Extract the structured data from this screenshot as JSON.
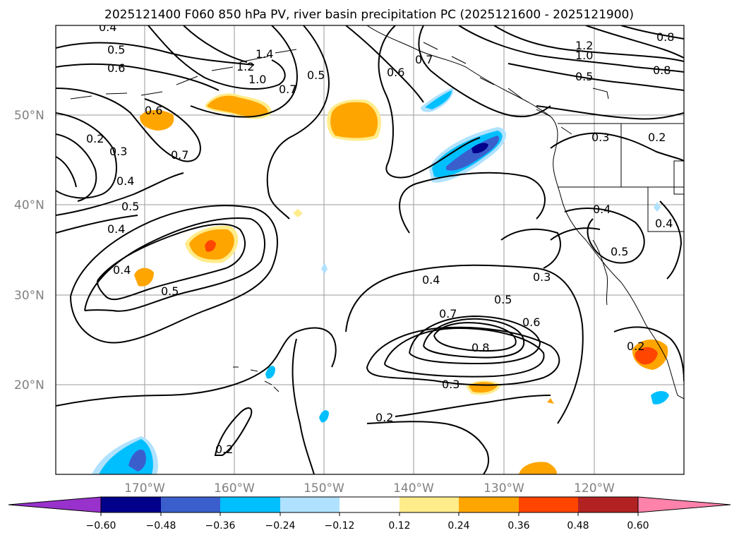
{
  "title": "2025121400 F060 850 hPa PV, river basin precipitation PC (2025121600 - 2025121900)",
  "lat_labels": [
    "50°N",
    "40°N",
    "30°N",
    "20°N"
  ],
  "lon_labels": [
    "170°W",
    "160°W",
    "150°W",
    "140°W",
    "130°W",
    "120°W"
  ],
  "contour_labels": [
    "0.4",
    "0.5",
    "0.6",
    "1.4",
    "1.2",
    "1.0",
    "0.7",
    "0.5",
    "0.7",
    "0.6",
    "1.2",
    "1.0",
    "0.8",
    "0.5",
    "0.8",
    "0.6",
    "0.2",
    "0.3",
    "0.4",
    "0.5",
    "0.4",
    "0.7",
    "0.4",
    "0.3",
    "0.2",
    "0.4",
    "0.5",
    "0.4",
    "0.5",
    "0.3",
    "0.4",
    "0.5",
    "0.7",
    "0.6",
    "0.8",
    "0.3",
    "0.2",
    "0.2",
    "0.2"
  ],
  "colorbar": {
    "ticks": [
      "−0.60",
      "−0.48",
      "−0.36",
      "−0.24",
      "−0.12",
      "0.12",
      "0.24",
      "0.36",
      "0.48",
      "0.60"
    ],
    "colors": [
      "#9932cc",
      "#00008b",
      "#3a5fcd",
      "#00bfff",
      "#b0e2ff",
      "#ffffff",
      "#ffec8b",
      "#ffa500",
      "#ff4500",
      "#b22222",
      "#ff82ab"
    ]
  },
  "colors": {
    "light_blue": "#b0e2ff",
    "blue": "#00bfff",
    "mid_blue": "#3a5fcd",
    "dark_blue": "#00008b",
    "yellow": "#ffec8b",
    "orange": "#ffa500",
    "red": "#ff4500"
  }
}
